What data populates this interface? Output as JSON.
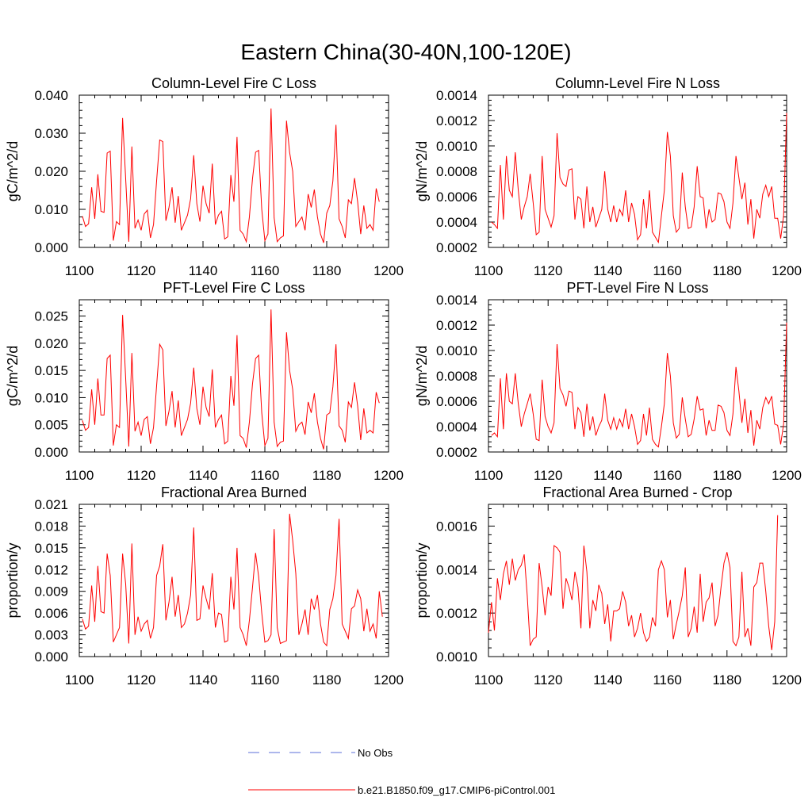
{
  "figure": {
    "title": "Eastern China(30-40N,100-120E)",
    "legend": [
      {
        "label": "No Obs",
        "color": "#5b6fd8",
        "dash": true
      },
      {
        "label": "b.e21.B1850.f09_g17.CMIP6-piControl.001",
        "color": "#ff0000",
        "dash": false
      }
    ]
  },
  "chart_data": [
    {
      "type": "line",
      "title": "Column-Level Fire C Loss",
      "xlabel": "",
      "ylabel": "gC/m^2/d",
      "xlim": [
        1100,
        1200
      ],
      "ylim": [
        0.0,
        0.04
      ],
      "xticks": [
        1100,
        1120,
        1140,
        1160,
        1180,
        1200
      ],
      "xtick_labels": [
        "1100",
        "1120",
        "1140",
        "1160",
        "1180",
        "1200"
      ],
      "yticks": [
        0.0,
        0.01,
        0.02,
        0.03,
        0.04
      ],
      "ytick_labels": [
        "0.000",
        "0.010",
        "0.020",
        "0.030",
        "0.040"
      ],
      "x_start": 1101,
      "series": [
        {
          "name": "b.e21.B1850.f09_g17.CMIP6-piControl.001",
          "color": "#ff0000",
          "values": [
            0.0082,
            0.0055,
            0.0062,
            0.0158,
            0.0075,
            0.0192,
            0.0095,
            0.0092,
            0.0248,
            0.0253,
            0.0018,
            0.0068,
            0.006,
            0.034,
            0.018,
            0.0015,
            0.0265,
            0.005,
            0.0072,
            0.0045,
            0.0088,
            0.0098,
            0.0025,
            0.006,
            0.0175,
            0.0282,
            0.0278,
            0.007,
            0.0105,
            0.0158,
            0.0065,
            0.0135,
            0.0045,
            0.0065,
            0.0085,
            0.0128,
            0.0242,
            0.0115,
            0.0068,
            0.0162,
            0.0115,
            0.009,
            0.022,
            0.006,
            0.0085,
            0.0095,
            0.0022,
            0.0028,
            0.019,
            0.012,
            0.029,
            0.0045,
            0.0035,
            0.0015,
            0.008,
            0.018,
            0.025,
            0.0255,
            0.01,
            0.0018,
            0.0035,
            0.0365,
            0.0078,
            0.0015,
            0.0025,
            0.003,
            0.0333,
            0.025,
            0.02,
            0.0055,
            0.0068,
            0.008,
            0.0045,
            0.014,
            0.0105,
            0.0152,
            0.008,
            0.0035,
            0.0012,
            0.009,
            0.011,
            0.0175,
            0.0322,
            0.0075,
            0.0055,
            0.0025,
            0.0125,
            0.0115,
            0.0182,
            0.012,
            0.0035,
            0.011,
            0.005,
            0.006,
            0.0045,
            0.0155,
            0.012
          ]
        }
      ]
    },
    {
      "type": "line",
      "title": "Column-Level Fire N Loss",
      "xlabel": "",
      "ylabel": "gN/m^2/d",
      "xlim": [
        1100,
        1200
      ],
      "ylim": [
        0.0002,
        0.0014
      ],
      "xticks": [
        1100,
        1120,
        1140,
        1160,
        1180,
        1200
      ],
      "xtick_labels": [
        "1100",
        "1120",
        "1140",
        "1160",
        "1180",
        "1200"
      ],
      "yticks": [
        0.0002,
        0.0004,
        0.0006,
        0.0008,
        0.001,
        0.0012,
        0.0014
      ],
      "ytick_labels": [
        "0.0002",
        "0.0004",
        "0.0006",
        "0.0008",
        "0.0010",
        "0.0012",
        "0.0014"
      ],
      "x_start": 1101,
      "series": [
        {
          "name": "b.e21.B1850.f09_g17.CMIP6-piControl.001",
          "color": "#ff0000",
          "values": [
            0.0004,
            0.00038,
            0.00035,
            0.00085,
            0.00042,
            0.00092,
            0.00065,
            0.0006,
            0.00095,
            0.00065,
            0.00042,
            0.00052,
            0.0006,
            0.00078,
            0.00055,
            0.0003,
            0.00032,
            0.00092,
            0.0005,
            0.00043,
            0.00036,
            0.00045,
            0.0011,
            0.00075,
            0.0007,
            0.00068,
            0.00081,
            0.00082,
            0.00042,
            0.0006,
            0.00058,
            0.00035,
            0.00068,
            0.0004,
            0.00052,
            0.00036,
            0.00043,
            0.0005,
            0.0008,
            0.0005,
            0.0004,
            0.00053,
            0.0004,
            0.0005,
            0.00045,
            0.00065,
            0.0004,
            0.00055,
            0.00046,
            0.00026,
            0.0003,
            0.00058,
            0.00035,
            0.00065,
            0.00032,
            0.00028,
            0.00024,
            0.00045,
            0.00065,
            0.00111,
            0.00092,
            0.00045,
            0.00032,
            0.00035,
            0.00079,
            0.00052,
            0.00035,
            0.00036,
            0.00052,
            0.00084,
            0.0006,
            0.00059,
            0.00035,
            0.0005,
            0.0004,
            0.00042,
            0.00063,
            0.00062,
            0.00056,
            0.0004,
            0.00035,
            0.00055,
            0.00092,
            0.00075,
            0.00058,
            0.00071,
            0.00038,
            0.00058,
            0.00027,
            0.0005,
            0.00043,
            0.00062,
            0.00069,
            0.0006,
            0.00068,
            0.00043,
            0.00043,
            0.00027,
            0.00045,
            0.00126
          ]
        }
      ]
    },
    {
      "type": "line",
      "title": "PFT-Level Fire C Loss",
      "xlabel": "",
      "ylabel": "gC/m^2/d",
      "xlim": [
        1100,
        1200
      ],
      "ylim": [
        0.0,
        0.028
      ],
      "xticks": [
        1100,
        1120,
        1140,
        1160,
        1180,
        1200
      ],
      "xtick_labels": [
        "1100",
        "1120",
        "1140",
        "1160",
        "1180",
        "1200"
      ],
      "yticks": [
        0.0,
        0.005,
        0.01,
        0.015,
        0.02,
        0.025
      ],
      "ytick_labels": [
        "0.000",
        "0.005",
        "0.010",
        "0.015",
        "0.020",
        "0.025"
      ],
      "x_start": 1101,
      "series": [
        {
          "name": "b.e21.B1850.f09_g17.CMIP6-piControl.001",
          "color": "#ff0000",
          "values": [
            0.0058,
            0.004,
            0.0045,
            0.0115,
            0.005,
            0.0135,
            0.0068,
            0.0068,
            0.0172,
            0.0178,
            0.0012,
            0.005,
            0.0045,
            0.0252,
            0.0135,
            0.001,
            0.0182,
            0.0038,
            0.0055,
            0.003,
            0.006,
            0.0065,
            0.0015,
            0.0045,
            0.0122,
            0.0198,
            0.0188,
            0.0048,
            0.0075,
            0.0112,
            0.0045,
            0.0095,
            0.003,
            0.0045,
            0.006,
            0.009,
            0.0155,
            0.008,
            0.005,
            0.012,
            0.0082,
            0.0065,
            0.0152,
            0.0045,
            0.006,
            0.0068,
            0.0015,
            0.002,
            0.014,
            0.0085,
            0.0215,
            0.003,
            0.0025,
            0.0008,
            0.0055,
            0.0125,
            0.0172,
            0.0178,
            0.0072,
            0.0012,
            0.0025,
            0.0262,
            0.0055,
            0.001,
            0.0018,
            0.002,
            0.022,
            0.015,
            0.0115,
            0.0038,
            0.005,
            0.0055,
            0.0032,
            0.0092,
            0.0072,
            0.0108,
            0.0055,
            0.0025,
            0.0005,
            0.0068,
            0.0072,
            0.012,
            0.0198,
            0.0048,
            0.004,
            0.0018,
            0.0092,
            0.0082,
            0.0128,
            0.0085,
            0.0022,
            0.008,
            0.0035,
            0.004,
            0.0035,
            0.011,
            0.009
          ]
        }
      ]
    },
    {
      "type": "line",
      "title": "PFT-Level Fire N Loss",
      "xlabel": "",
      "ylabel": "gN/m^2/d",
      "xlim": [
        1100,
        1200
      ],
      "ylim": [
        0.0002,
        0.0014
      ],
      "xticks": [
        1100,
        1120,
        1140,
        1160,
        1180,
        1200
      ],
      "xtick_labels": [
        "1100",
        "1120",
        "1140",
        "1160",
        "1180",
        "1200"
      ],
      "yticks": [
        0.0002,
        0.0004,
        0.0006,
        0.0008,
        0.001,
        0.0012,
        0.0014
      ],
      "ytick_labels": [
        "0.0002",
        "0.0004",
        "0.0006",
        "0.0008",
        "0.0010",
        "0.0012",
        "0.0014"
      ],
      "x_start": 1101,
      "series": [
        {
          "name": "b.e21.B1850.f09_g17.CMIP6-piControl.001",
          "color": "#ff0000",
          "values": [
            0.00033,
            0.00035,
            0.00032,
            0.00078,
            0.00038,
            0.00082,
            0.0006,
            0.00058,
            0.00082,
            0.00058,
            0.0004,
            0.0005,
            0.00058,
            0.00066,
            0.0005,
            0.0003,
            0.00029,
            0.00077,
            0.00048,
            0.0004,
            0.00035,
            0.00043,
            0.00105,
            0.0007,
            0.00065,
            0.00056,
            0.00068,
            0.00067,
            0.00038,
            0.00055,
            0.00051,
            0.00032,
            0.00058,
            0.00037,
            0.00048,
            0.00033,
            0.0004,
            0.00045,
            0.00066,
            0.00045,
            0.00038,
            0.00047,
            0.00038,
            0.00046,
            0.0004,
            0.00054,
            0.00038,
            0.0005,
            0.0004,
            0.00026,
            0.00029,
            0.0005,
            0.00033,
            0.00055,
            0.0003,
            0.00026,
            0.00024,
            0.0004,
            0.00058,
            0.00098,
            0.0008,
            0.00043,
            0.00031,
            0.00034,
            0.00063,
            0.00046,
            0.00032,
            0.00034,
            0.00046,
            0.00064,
            0.00053,
            0.00054,
            0.00033,
            0.00045,
            0.00037,
            0.00037,
            0.00057,
            0.00056,
            0.00051,
            0.00037,
            0.00033,
            0.0005,
            0.00087,
            0.00068,
            0.00043,
            0.00062,
            0.00035,
            0.00053,
            0.00025,
            0.00045,
            0.00038,
            0.00055,
            0.00063,
            0.00058,
            0.00064,
            0.00042,
            0.00041,
            0.00026,
            0.00042,
            0.00122
          ]
        }
      ]
    },
    {
      "type": "line",
      "title": "Fractional Area Burned",
      "xlabel": "",
      "ylabel": "proportion/y",
      "xlim": [
        1100,
        1200
      ],
      "ylim": [
        0.0,
        0.021
      ],
      "xticks": [
        1100,
        1120,
        1140,
        1160,
        1180,
        1200
      ],
      "xtick_labels": [
        "1100",
        "1120",
        "1140",
        "1160",
        "1180",
        "1200"
      ],
      "yticks": [
        0.0,
        0.003,
        0.006,
        0.009,
        0.012,
        0.015,
        0.018,
        0.021
      ],
      "ytick_labels": [
        "0.000",
        "0.003",
        "0.006",
        "0.009",
        "0.012",
        "0.015",
        "0.018",
        "0.021"
      ],
      "x_start": 1101,
      "series": [
        {
          "name": "b.e21.B1850.f09_g17.CMIP6-piControl.001",
          "color": "#ff0000",
          "values": [
            0.0052,
            0.0038,
            0.0042,
            0.0098,
            0.0048,
            0.0125,
            0.0062,
            0.006,
            0.0142,
            0.0112,
            0.002,
            0.003,
            0.004,
            0.0142,
            0.01,
            0.0018,
            0.0156,
            0.003,
            0.0055,
            0.0035,
            0.0045,
            0.005,
            0.0025,
            0.004,
            0.0112,
            0.0125,
            0.0155,
            0.005,
            0.0075,
            0.011,
            0.0055,
            0.0085,
            0.004,
            0.0045,
            0.006,
            0.0085,
            0.0178,
            0.005,
            0.0052,
            0.0098,
            0.008,
            0.0065,
            0.0115,
            0.004,
            0.006,
            0.0058,
            0.002,
            0.0022,
            0.011,
            0.0065,
            0.015,
            0.004,
            0.003,
            0.0015,
            0.005,
            0.0095,
            0.0143,
            0.011,
            0.006,
            0.002,
            0.0022,
            0.003,
            0.0176,
            0.004,
            0.0018,
            0.002,
            0.0022,
            0.0197,
            0.016,
            0.0115,
            0.003,
            0.0045,
            0.0065,
            0.003,
            0.008,
            0.0065,
            0.0085,
            0.0045,
            0.002,
            0.0015,
            0.0065,
            0.008,
            0.0112,
            0.019,
            0.0045,
            0.0035,
            0.0025,
            0.0066,
            0.007,
            0.0092,
            0.008,
            0.0035,
            0.0066,
            0.0035,
            0.0045,
            0.0025,
            0.009,
            0.0055
          ]
        }
      ]
    },
    {
      "type": "line",
      "title": "Fractional Area Burned - Crop",
      "xlabel": "",
      "ylabel": "proportion/y",
      "xlim": [
        1100,
        1200
      ],
      "ylim": [
        0.001,
        0.0017
      ],
      "xticks": [
        1100,
        1120,
        1140,
        1160,
        1180,
        1200
      ],
      "xtick_labels": [
        "1100",
        "1120",
        "1140",
        "1160",
        "1180",
        "1200"
      ],
      "yticks": [
        0.001,
        0.0012,
        0.0014,
        0.0016
      ],
      "ytick_labels": [
        "0.0010",
        "0.0012",
        "0.0014",
        "0.0016"
      ],
      "x_start": 1100,
      "series": [
        {
          "name": "b.e21.B1850.f09_g17.CMIP6-piControl.001",
          "color": "#ff0000",
          "values": [
            0.00111,
            0.00125,
            0.00112,
            0.00136,
            0.00126,
            0.00138,
            0.00144,
            0.00133,
            0.00145,
            0.00135,
            0.0014,
            0.00142,
            0.00147,
            0.00128,
            0.00105,
            0.00108,
            0.00109,
            0.00143,
            0.00132,
            0.00119,
            0.00132,
            0.00128,
            0.00151,
            0.0015,
            0.00148,
            0.00122,
            0.00136,
            0.00132,
            0.00126,
            0.00139,
            0.00132,
            0.00113,
            0.00151,
            0.00139,
            0.00113,
            0.00126,
            0.00121,
            0.00133,
            0.00129,
            0.00115,
            0.00124,
            0.00107,
            0.00121,
            0.00121,
            0.00122,
            0.0013,
            0.00125,
            0.00114,
            0.00119,
            0.00109,
            0.00113,
            0.0012,
            0.00111,
            0.00107,
            0.00109,
            0.00118,
            0.00114,
            0.0014,
            0.00144,
            0.0014,
            0.00118,
            0.00126,
            0.00108,
            0.00115,
            0.00121,
            0.00128,
            0.00141,
            0.00109,
            0.00113,
            0.00123,
            0.00111,
            0.00138,
            0.00116,
            0.00125,
            0.00127,
            0.00134,
            0.00114,
            0.00119,
            0.00132,
            0.00143,
            0.00148,
            0.00141,
            0.00107,
            0.00105,
            0.00109,
            0.00139,
            0.00109,
            0.00113,
            0.00105,
            0.00132,
            0.00134,
            0.00143,
            0.00143,
            0.0013,
            0.00114,
            0.00103,
            0.00116,
            0.00165
          ]
        }
      ]
    }
  ]
}
